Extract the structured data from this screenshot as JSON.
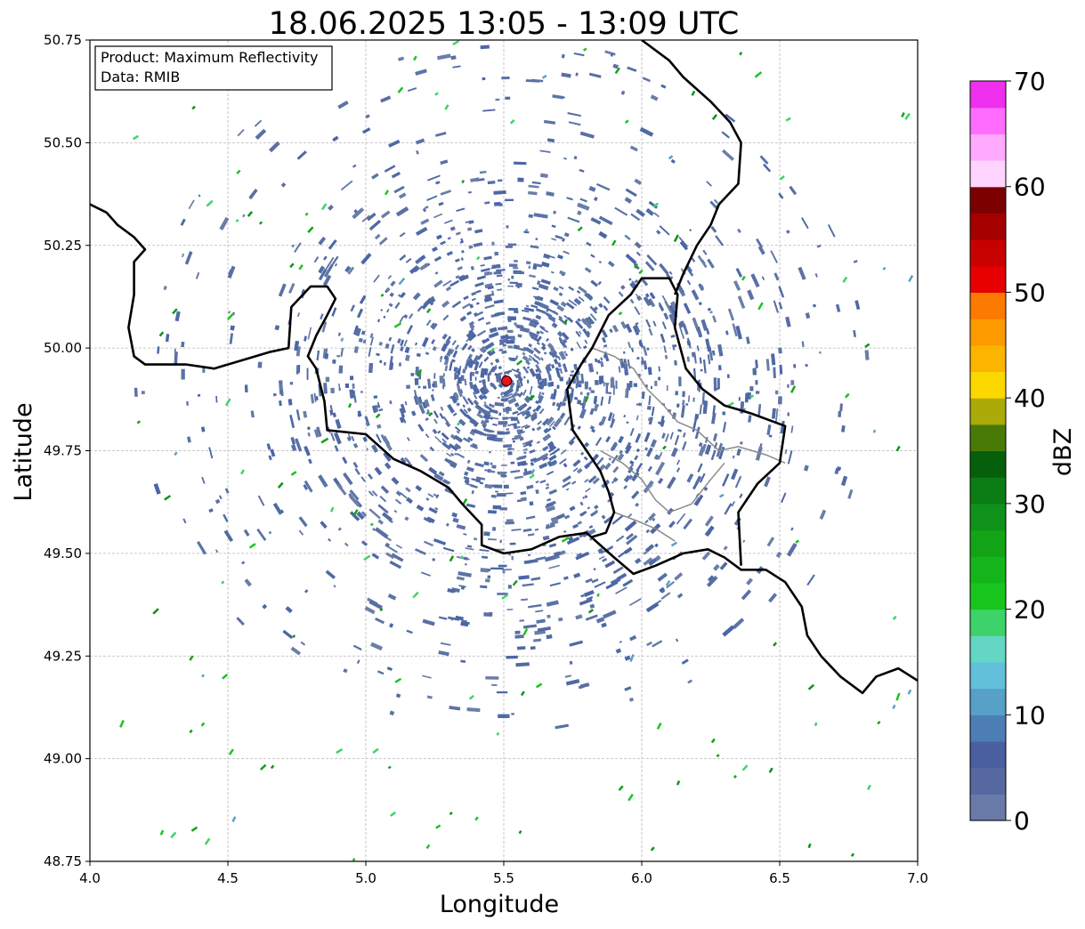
{
  "title": "18.06.2025 13:05 - 13:09 UTC",
  "info_box": {
    "product": "Product: Maximum Reflectivity",
    "source": "Data: RMIB"
  },
  "axes": {
    "xlabel": "Longitude",
    "ylabel": "Latitude",
    "xlim": [
      4.0,
      7.0
    ],
    "ylim": [
      48.75,
      50.75
    ],
    "xticks": [
      "4.0",
      "4.5",
      "5.0",
      "5.5",
      "6.0",
      "6.5",
      "7.0"
    ],
    "yticks": [
      "48.75",
      "49.00",
      "49.25",
      "49.50",
      "49.75",
      "50.00",
      "50.25",
      "50.50",
      "50.75"
    ],
    "grid": true
  },
  "radar_site": {
    "lon": 5.51,
    "lat": 49.92,
    "color": "#e8141c"
  },
  "colorbar": {
    "label": "dBZ",
    "min": 0,
    "max": 70,
    "ticks": [
      "0",
      "10",
      "20",
      "30",
      "40",
      "50",
      "60",
      "70"
    ],
    "colors": [
      "#6a7aa8",
      "#5668a0",
      "#4a5fa0",
      "#4c7db4",
      "#57a0c8",
      "#62c0da",
      "#63d6c6",
      "#3ed36a",
      "#18c51c",
      "#14b51a",
      "#12a416",
      "#0e921a",
      "#0b7c14",
      "#065f0a",
      "#4a7a06",
      "#aaaa08",
      "#fcd800",
      "#fcb400",
      "#fc9a00",
      "#fc7a00",
      "#e60000",
      "#c80000",
      "#a40000",
      "#7c0000",
      "#ffd4ff",
      "#ffaaff",
      "#ff6cff",
      "#ee30ee"
    ]
  },
  "borders_black": [
    [
      [
        4.0,
        50.35
      ],
      [
        4.06,
        50.33
      ],
      [
        4.1,
        50.3
      ],
      [
        4.16,
        50.27
      ],
      [
        4.2,
        50.24
      ],
      [
        4.16,
        50.21
      ],
      [
        4.16,
        50.13
      ],
      [
        4.14,
        50.05
      ],
      [
        4.16,
        49.98
      ],
      [
        4.2,
        49.96
      ],
      [
        4.35,
        49.96
      ],
      [
        4.45,
        49.95
      ],
      [
        4.55,
        49.97
      ],
      [
        4.65,
        49.99
      ],
      [
        4.72,
        50.0
      ],
      [
        4.73,
        50.1
      ],
      [
        4.8,
        50.15
      ],
      [
        4.86,
        50.15
      ],
      [
        4.89,
        50.12
      ],
      [
        4.86,
        50.08
      ],
      [
        4.82,
        50.03
      ],
      [
        4.79,
        49.98
      ],
      [
        4.82,
        49.95
      ],
      [
        4.85,
        49.87
      ],
      [
        4.86,
        49.8
      ],
      [
        5.0,
        49.79
      ],
      [
        5.1,
        49.73
      ],
      [
        5.2,
        49.7
      ],
      [
        5.3,
        49.66
      ],
      [
        5.35,
        49.62
      ],
      [
        5.42,
        49.57
      ],
      [
        5.42,
        49.52
      ],
      [
        5.5,
        49.5
      ],
      [
        5.6,
        49.51
      ],
      [
        5.7,
        49.54
      ],
      [
        5.8,
        49.55
      ],
      [
        5.9,
        49.49
      ],
      [
        5.97,
        49.45
      ],
      [
        6.05,
        49.47
      ],
      [
        6.15,
        49.5
      ],
      [
        6.24,
        49.51
      ],
      [
        6.3,
        49.49
      ],
      [
        6.36,
        49.46
      ],
      [
        6.45,
        49.46
      ],
      [
        6.52,
        49.43
      ],
      [
        6.58,
        49.37
      ],
      [
        6.6,
        49.3
      ],
      [
        6.65,
        49.25
      ],
      [
        6.72,
        49.2
      ],
      [
        6.8,
        49.16
      ],
      [
        6.85,
        49.2
      ],
      [
        6.93,
        49.22
      ],
      [
        7.0,
        49.19
      ]
    ],
    [
      [
        6.36,
        49.47
      ],
      [
        6.35,
        49.6
      ],
      [
        6.42,
        49.67
      ],
      [
        6.5,
        49.72
      ],
      [
        6.52,
        49.81
      ],
      [
        6.4,
        49.84
      ],
      [
        6.35,
        49.85
      ],
      [
        6.3,
        49.86
      ],
      [
        6.22,
        49.9
      ],
      [
        6.16,
        49.95
      ],
      [
        6.12,
        50.05
      ],
      [
        6.13,
        50.13
      ],
      [
        6.1,
        50.17
      ],
      [
        6.0,
        50.17
      ],
      [
        5.96,
        50.13
      ],
      [
        5.88,
        50.08
      ],
      [
        5.82,
        50.0
      ],
      [
        5.78,
        49.96
      ],
      [
        5.73,
        49.9
      ],
      [
        5.75,
        49.8
      ],
      [
        5.8,
        49.75
      ],
      [
        5.85,
        49.7
      ],
      [
        5.88,
        49.65
      ],
      [
        5.9,
        49.6
      ],
      [
        5.87,
        49.55
      ],
      [
        5.82,
        49.54
      ]
    ],
    [
      [
        6.12,
        50.13
      ],
      [
        6.15,
        50.18
      ],
      [
        6.2,
        50.25
      ],
      [
        6.25,
        50.3
      ],
      [
        6.28,
        50.35
      ],
      [
        6.35,
        50.4
      ],
      [
        6.36,
        50.5
      ],
      [
        6.32,
        50.55
      ],
      [
        6.25,
        50.6
      ],
      [
        6.2,
        50.63
      ],
      [
        6.15,
        50.66
      ],
      [
        6.1,
        50.7
      ],
      [
        6.0,
        50.75
      ]
    ]
  ],
  "borders_grey": [
    [
      [
        5.82,
        50.0
      ],
      [
        5.9,
        49.98
      ],
      [
        5.97,
        49.95
      ],
      [
        6.02,
        49.9
      ],
      [
        6.08,
        49.86
      ],
      [
        6.13,
        49.82
      ],
      [
        6.2,
        49.8
      ],
      [
        6.28,
        49.75
      ],
      [
        6.35,
        49.76
      ],
      [
        6.45,
        49.74
      ],
      [
        6.52,
        49.72
      ]
    ],
    [
      [
        5.85,
        49.75
      ],
      [
        5.93,
        49.72
      ],
      [
        6.0,
        49.68
      ],
      [
        6.05,
        49.63
      ],
      [
        6.1,
        49.6
      ],
      [
        6.18,
        49.62
      ],
      [
        6.25,
        49.68
      ],
      [
        6.3,
        49.72
      ]
    ],
    [
      [
        5.9,
        49.6
      ],
      [
        5.98,
        49.58
      ],
      [
        6.05,
        49.56
      ],
      [
        6.12,
        49.53
      ]
    ]
  ]
}
